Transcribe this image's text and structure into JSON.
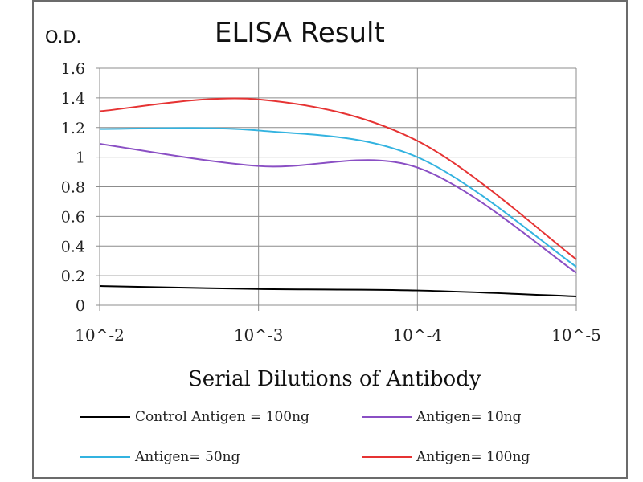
{
  "chart_data": {
    "type": "line",
    "title": "ELISA Result",
    "ylabel": "O.D.",
    "xlabel": "Serial Dilutions  of Antibody",
    "categories": [
      "10^-2",
      "10^-3",
      "10^-4",
      "10^-5"
    ],
    "yticks": [
      "0",
      "0.2",
      "0.4",
      "0.6",
      "0.8",
      "1",
      "1.2",
      "1.4",
      "1.6"
    ],
    "ylim": [
      0,
      1.6
    ],
    "grid": true,
    "legend_position": "bottom",
    "series": [
      {
        "name": "Control Antigen = 100ng",
        "color": "#000000",
        "values": [
          0.13,
          0.11,
          0.1,
          0.06
        ]
      },
      {
        "name": "Antigen= 10ng",
        "color": "#8a4fc4",
        "values": [
          1.09,
          0.94,
          0.93,
          0.22
        ]
      },
      {
        "name": "Antigen= 50ng",
        "color": "#33b3e0",
        "values": [
          1.19,
          1.18,
          1.0,
          0.26
        ]
      },
      {
        "name": "Antigen= 100ng",
        "color": "#e63333",
        "values": [
          1.31,
          1.39,
          1.11,
          0.31
        ]
      }
    ]
  }
}
